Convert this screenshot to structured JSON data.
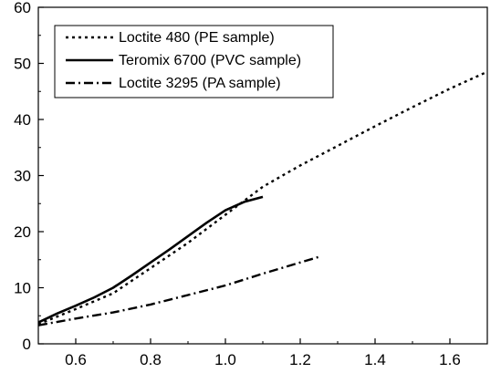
{
  "chart_data": {
    "type": "line",
    "title": "",
    "xlabel": "",
    "ylabel": "",
    "xlim": [
      0.5,
      1.7
    ],
    "ylim": [
      0,
      60
    ],
    "x_ticks": [
      0.6,
      0.8,
      1.0,
      1.2,
      1.4,
      1.6
    ],
    "x_tick_labels": [
      "0.6",
      "0.8",
      "1.0",
      "1.2",
      "1.4",
      "1.6"
    ],
    "y_ticks": [
      0,
      10,
      20,
      30,
      40,
      50,
      60
    ],
    "y_tick_labels": [
      "0",
      "10",
      "20",
      "30",
      "40",
      "50",
      "60"
    ],
    "grid": false,
    "legend_position": "top-left",
    "series": [
      {
        "name": "Loctite 480 (PE sample)",
        "style": "dotted",
        "color": "#000000",
        "x": [
          0.5,
          0.6,
          0.7,
          0.8,
          0.9,
          1.0,
          1.05,
          1.1,
          1.2,
          1.3,
          1.4,
          1.5,
          1.6,
          1.7
        ],
        "y": [
          3.5,
          6.2,
          9.0,
          13.5,
          18.0,
          23.0,
          25.5,
          28.0,
          31.8,
          35.3,
          38.8,
          42.2,
          45.5,
          48.5
        ]
      },
      {
        "name": "Teromix 6700 (PVC sample)",
        "style": "solid",
        "color": "#000000",
        "x": [
          0.5,
          0.55,
          0.6,
          0.65,
          0.7,
          0.75,
          0.8,
          0.85,
          0.9,
          0.95,
          1.0,
          1.05,
          1.1
        ],
        "y": [
          3.8,
          5.4,
          6.8,
          8.3,
          10.0,
          12.2,
          14.5,
          16.8,
          19.2,
          21.6,
          23.8,
          25.3,
          26.2
        ]
      },
      {
        "name": "Loctite 3295 (PA sample)",
        "style": "dashdot",
        "color": "#000000",
        "x": [
          0.5,
          0.6,
          0.7,
          0.8,
          0.9,
          1.0,
          1.1,
          1.2,
          1.25
        ],
        "y": [
          3.3,
          4.5,
          5.6,
          7.0,
          8.7,
          10.4,
          12.5,
          14.5,
          15.5
        ]
      }
    ]
  }
}
